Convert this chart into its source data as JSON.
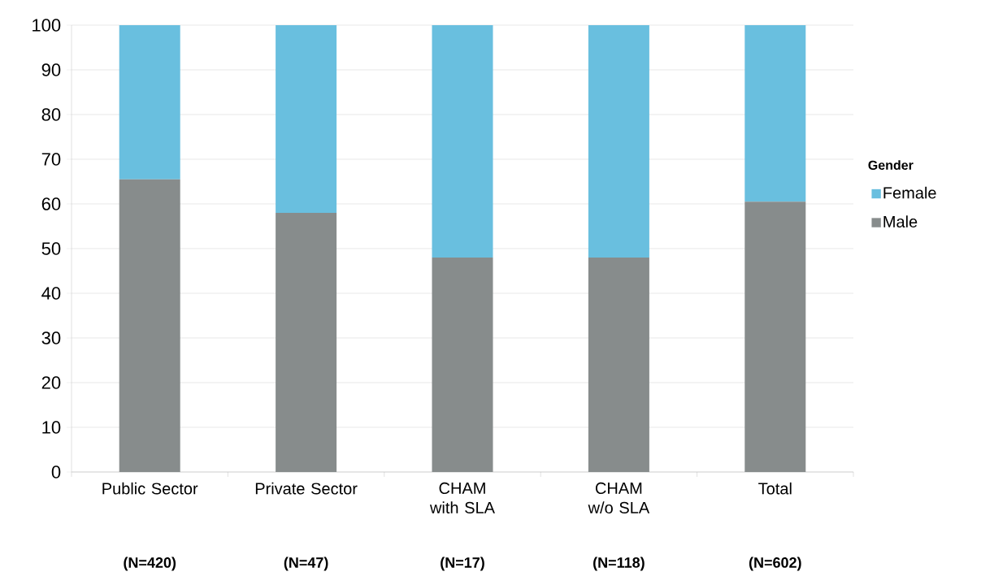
{
  "chart_data": {
    "type": "bar",
    "stacked": true,
    "categories": [
      "Public Sector",
      "Private Sector",
      "CHAM with SLA",
      "CHAM w/o SLA",
      "Total"
    ],
    "series": [
      {
        "name": "Male",
        "color": "#878c8c",
        "values": [
          65.5,
          58,
          48,
          48,
          60.5
        ]
      },
      {
        "name": "Female",
        "color": "#69bfdf",
        "values": [
          34.5,
          42,
          52,
          52,
          39.5
        ]
      }
    ],
    "ylim": [
      0,
      100
    ],
    "yticks": [
      0,
      10,
      20,
      30,
      40,
      50,
      60,
      70,
      80,
      90,
      100
    ],
    "grid": "y",
    "legend": "right",
    "legend_title": "Gender",
    "annotations": [
      "(N=420)",
      "(N=47)",
      "(N=17)",
      "(N=118)",
      "(N=602)"
    ]
  }
}
